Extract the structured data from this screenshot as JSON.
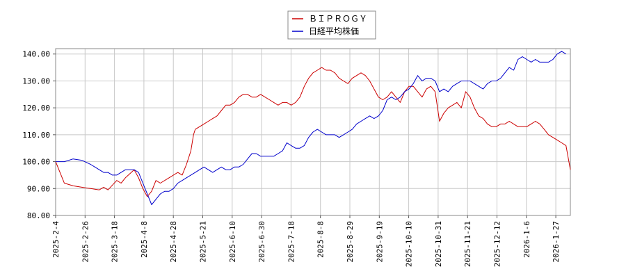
{
  "chart_data": {
    "type": "line",
    "title": "",
    "xlabel": "",
    "ylabel": "",
    "ylim": [
      80,
      142
    ],
    "grid": true,
    "legend_position": "top-center",
    "x_ticks": [
      "2025-2-4",
      "2025-2-26",
      "2025-3-18",
      "2025-4-8",
      "2025-4-28",
      "2025-5-21",
      "2025-6-10",
      "2025-6-30",
      "2025-7-18",
      "2025-8-8",
      "2025-8-29",
      "2025-9-19",
      "2025-10-10",
      "2025-10-31",
      "2025-11-21",
      "2025-12-12",
      "2026-1-6",
      "2026-1-27"
    ],
    "y_ticks": [
      "80.00",
      "90.00",
      "100.00",
      "110.00",
      "120.00",
      "130.00",
      "140.00"
    ],
    "y_tick_values": [
      80,
      90,
      100,
      110,
      120,
      130,
      140
    ],
    "series": [
      {
        "name": "ＢＩＰＲＯＧＹ",
        "color": "#cc0000",
        "points": [
          [
            0,
            100
          ],
          [
            1,
            92
          ],
          [
            2,
            91
          ],
          [
            3,
            90.5
          ],
          [
            4,
            90
          ],
          [
            5,
            89.5
          ],
          [
            5.5,
            90.5
          ],
          [
            6,
            89.5
          ],
          [
            7,
            93
          ],
          [
            7.5,
            92
          ],
          [
            8,
            94
          ],
          [
            9,
            97
          ],
          [
            9.5,
            94
          ],
          [
            10,
            90
          ],
          [
            10.5,
            87
          ],
          [
            11,
            89
          ],
          [
            11.5,
            93
          ],
          [
            12,
            92
          ],
          [
            13,
            94
          ],
          [
            14,
            96
          ],
          [
            14.5,
            95
          ],
          [
            15,
            99
          ],
          [
            15.5,
            104
          ],
          [
            15.8,
            110
          ],
          [
            16,
            112
          ],
          [
            16.5,
            113
          ],
          [
            17,
            114
          ],
          [
            17.5,
            115
          ],
          [
            18,
            116
          ],
          [
            18.5,
            117
          ],
          [
            19,
            119
          ],
          [
            19.5,
            121
          ],
          [
            20,
            121
          ],
          [
            20.5,
            122
          ],
          [
            21,
            124
          ],
          [
            21.5,
            125
          ],
          [
            22,
            125
          ],
          [
            22.5,
            124
          ],
          [
            23,
            124
          ],
          [
            23.5,
            125
          ],
          [
            24,
            124
          ],
          [
            24.5,
            123
          ],
          [
            25,
            122
          ],
          [
            25.5,
            121
          ],
          [
            26,
            122
          ],
          [
            26.5,
            122
          ],
          [
            27,
            121
          ],
          [
            27.5,
            122
          ],
          [
            28,
            124
          ],
          [
            28.5,
            128
          ],
          [
            29,
            131
          ],
          [
            29.5,
            133
          ],
          [
            30,
            134
          ],
          [
            30.5,
            135
          ],
          [
            31,
            134
          ],
          [
            31.5,
            134
          ],
          [
            32,
            133
          ],
          [
            32.5,
            131
          ],
          [
            33,
            130
          ],
          [
            33.5,
            129
          ],
          [
            34,
            131
          ],
          [
            34.5,
            132
          ],
          [
            35,
            133
          ],
          [
            35.5,
            132
          ],
          [
            36,
            130
          ],
          [
            36.5,
            127
          ],
          [
            37,
            124
          ],
          [
            37.5,
            123
          ],
          [
            38,
            124
          ],
          [
            38.5,
            126
          ],
          [
            39,
            124
          ],
          [
            39.5,
            122
          ],
          [
            40,
            126
          ],
          [
            40.5,
            128
          ],
          [
            41,
            128
          ],
          [
            41.5,
            126
          ],
          [
            42,
            124
          ],
          [
            42.5,
            127
          ],
          [
            43,
            128
          ],
          [
            43.5,
            126
          ],
          [
            44,
            115
          ],
          [
            44.5,
            118
          ],
          [
            45,
            120
          ],
          [
            45.5,
            121
          ],
          [
            46,
            122
          ],
          [
            46.5,
            120
          ],
          [
            47,
            126
          ],
          [
            47.5,
            124
          ],
          [
            48,
            120
          ],
          [
            48.5,
            117
          ],
          [
            49,
            116
          ],
          [
            49.5,
            114
          ],
          [
            50,
            113
          ],
          [
            50.5,
            113
          ],
          [
            51,
            114
          ],
          [
            51.5,
            114
          ],
          [
            52,
            115
          ],
          [
            52.5,
            114
          ],
          [
            53,
            113
          ],
          [
            53.5,
            113
          ],
          [
            54,
            113
          ],
          [
            54.5,
            114
          ],
          [
            55,
            115
          ],
          [
            55.5,
            114
          ],
          [
            56,
            112
          ],
          [
            56.5,
            110
          ],
          [
            57,
            109
          ],
          [
            57.5,
            108
          ],
          [
            58,
            107
          ],
          [
            58.5,
            106
          ],
          [
            59,
            97
          ]
        ]
      },
      {
        "name": "日経平均株価",
        "color": "#0000cc",
        "points": [
          [
            0,
            100
          ],
          [
            1,
            100
          ],
          [
            2,
            101
          ],
          [
            3,
            100.5
          ],
          [
            4,
            99
          ],
          [
            4.5,
            98
          ],
          [
            5,
            97
          ],
          [
            5.5,
            96
          ],
          [
            6,
            96
          ],
          [
            6.5,
            95
          ],
          [
            7,
            95
          ],
          [
            7.5,
            96
          ],
          [
            8,
            97
          ],
          [
            9,
            97
          ],
          [
            9.5,
            96
          ],
          [
            10,
            92
          ],
          [
            10.5,
            88
          ],
          [
            11,
            84
          ],
          [
            11.5,
            86
          ],
          [
            12,
            88
          ],
          [
            12.5,
            89
          ],
          [
            13,
            89
          ],
          [
            13.5,
            90
          ],
          [
            14,
            92
          ],
          [
            14.5,
            93
          ],
          [
            15,
            94
          ],
          [
            15.5,
            95
          ],
          [
            16,
            96
          ],
          [
            16.5,
            97
          ],
          [
            17,
            98
          ],
          [
            17.5,
            97
          ],
          [
            18,
            96
          ],
          [
            18.5,
            97
          ],
          [
            19,
            98
          ],
          [
            19.5,
            97
          ],
          [
            20,
            97
          ],
          [
            20.5,
            98
          ],
          [
            21,
            98
          ],
          [
            21.5,
            99
          ],
          [
            22,
            101
          ],
          [
            22.5,
            103
          ],
          [
            23,
            103
          ],
          [
            23.5,
            102
          ],
          [
            24,
            102
          ],
          [
            24.5,
            102
          ],
          [
            25,
            102
          ],
          [
            25.5,
            103
          ],
          [
            26,
            104
          ],
          [
            26.5,
            107
          ],
          [
            27,
            106
          ],
          [
            27.5,
            105
          ],
          [
            28,
            105
          ],
          [
            28.5,
            106
          ],
          [
            29,
            109
          ],
          [
            29.5,
            111
          ],
          [
            30,
            112
          ],
          [
            30.5,
            111
          ],
          [
            31,
            110
          ],
          [
            31.5,
            110
          ],
          [
            32,
            110
          ],
          [
            32.5,
            109
          ],
          [
            33,
            110
          ],
          [
            33.5,
            111
          ],
          [
            34,
            112
          ],
          [
            34.5,
            114
          ],
          [
            35,
            115
          ],
          [
            35.5,
            116
          ],
          [
            36,
            117
          ],
          [
            36.5,
            116
          ],
          [
            37,
            117
          ],
          [
            37.5,
            119
          ],
          [
            38,
            123
          ],
          [
            38.5,
            124
          ],
          [
            39,
            123
          ],
          [
            39.5,
            124
          ],
          [
            40,
            126
          ],
          [
            40.5,
            127
          ],
          [
            41,
            129
          ],
          [
            41.5,
            132
          ],
          [
            42,
            130
          ],
          [
            42.5,
            131
          ],
          [
            43,
            131
          ],
          [
            43.5,
            130
          ],
          [
            44,
            126
          ],
          [
            44.5,
            127
          ],
          [
            45,
            126
          ],
          [
            45.5,
            128
          ],
          [
            46,
            129
          ],
          [
            46.5,
            130
          ],
          [
            47,
            130
          ],
          [
            47.5,
            130
          ],
          [
            48,
            129
          ],
          [
            48.5,
            128
          ],
          [
            49,
            127
          ],
          [
            49.5,
            129
          ],
          [
            50,
            130
          ],
          [
            50.5,
            130
          ],
          [
            51,
            131
          ],
          [
            51.5,
            133
          ],
          [
            52,
            135
          ],
          [
            52.5,
            134
          ],
          [
            53,
            138
          ],
          [
            53.5,
            139
          ],
          [
            54,
            138
          ],
          [
            54.5,
            137
          ],
          [
            55,
            138
          ],
          [
            55.5,
            137
          ],
          [
            56,
            137
          ],
          [
            56.5,
            137
          ],
          [
            57,
            138
          ],
          [
            57.5,
            140
          ],
          [
            58,
            141
          ],
          [
            58.5,
            140
          ]
        ]
      }
    ]
  }
}
